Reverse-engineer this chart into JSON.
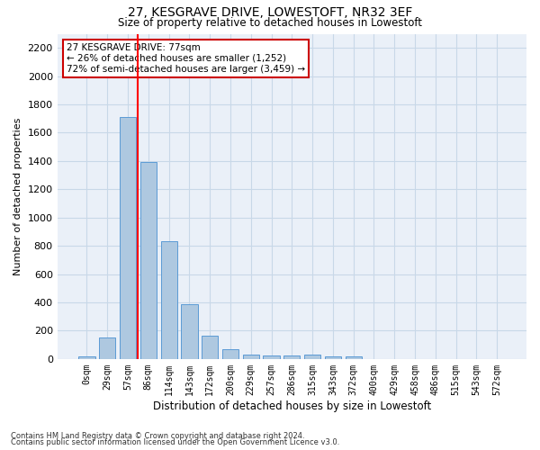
{
  "title": "27, KESGRAVE DRIVE, LOWESTOFT, NR32 3EF",
  "subtitle": "Size of property relative to detached houses in Lowestoft",
  "xlabel": "Distribution of detached houses by size in Lowestoft",
  "ylabel": "Number of detached properties",
  "bar_labels": [
    "0sqm",
    "29sqm",
    "57sqm",
    "86sqm",
    "114sqm",
    "143sqm",
    "172sqm",
    "200sqm",
    "229sqm",
    "257sqm",
    "286sqm",
    "315sqm",
    "343sqm",
    "372sqm",
    "400sqm",
    "429sqm",
    "458sqm",
    "486sqm",
    "515sqm",
    "543sqm",
    "572sqm"
  ],
  "bar_values": [
    15,
    150,
    1710,
    1395,
    830,
    390,
    165,
    70,
    30,
    25,
    25,
    30,
    20,
    15,
    0,
    0,
    0,
    0,
    0,
    0,
    0
  ],
  "bar_color": "#aec8e0",
  "bar_edgecolor": "#5b9bd5",
  "red_line_x": 2.5,
  "annotation_text": "27 KESGRAVE DRIVE: 77sqm\n← 26% of detached houses are smaller (1,252)\n72% of semi-detached houses are larger (3,459) →",
  "annotation_box_color": "#ffffff",
  "annotation_box_edgecolor": "#cc0000",
  "ylim": [
    0,
    2300
  ],
  "yticks": [
    0,
    200,
    400,
    600,
    800,
    1000,
    1200,
    1400,
    1600,
    1800,
    2000,
    2200
  ],
  "grid_color": "#c8d8e8",
  "background_color": "#eaf0f8",
  "footnote1": "Contains HM Land Registry data © Crown copyright and database right 2024.",
  "footnote2": "Contains public sector information licensed under the Open Government Licence v3.0."
}
